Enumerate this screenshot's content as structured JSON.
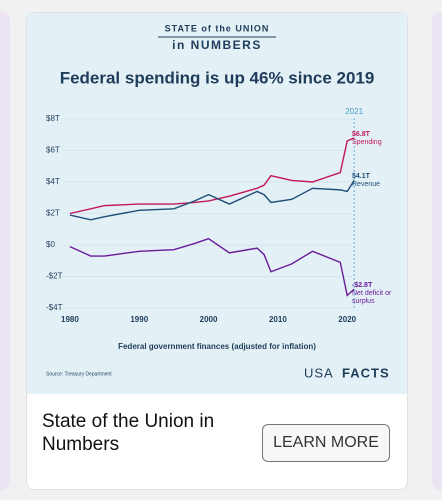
{
  "card": {
    "kicker_top": "STATE of the UNION",
    "kicker_bottom": "in NUMBERS",
    "title": "State of the Union in Numbers",
    "button": "LEARN MORE",
    "source": "Source: Treasury Department",
    "logo_a": "USA",
    "logo_b": "FACTS"
  },
  "chart_data": {
    "type": "line",
    "title": "Federal spending is up 46% since 2019",
    "x_label": "Federal government finances (adjusted for inflation)",
    "x": [
      1980,
      1983,
      1985,
      1990,
      1995,
      1998,
      2000,
      2003,
      2007,
      2008,
      2009,
      2012,
      2015,
      2019,
      2020,
      2021
    ],
    "series": [
      {
        "name": "Spending",
        "color": "#c2185b",
        "end_label": "$6.8T",
        "values": [
          2.0,
          2.3,
          2.5,
          2.6,
          2.6,
          2.7,
          2.8,
          3.1,
          3.6,
          3.8,
          4.4,
          4.1,
          4.0,
          4.6,
          6.6,
          6.8
        ]
      },
      {
        "name": "Revenue",
        "color": "#1f4e79",
        "end_label": "$4.1T",
        "values": [
          1.9,
          1.6,
          1.8,
          2.2,
          2.3,
          2.8,
          3.2,
          2.6,
          3.4,
          3.2,
          2.7,
          2.9,
          3.6,
          3.5,
          3.4,
          4.1
        ]
      },
      {
        "name": "Net deficit or surplus",
        "color": "#6a1b9a",
        "end_label": "-$2.8T",
        "values": [
          -0.1,
          -0.7,
          -0.7,
          -0.4,
          -0.3,
          0.1,
          0.4,
          -0.5,
          -0.2,
          -0.6,
          -1.7,
          -1.2,
          -0.4,
          -1.1,
          -3.2,
          -2.8
        ]
      }
    ],
    "marker": 2021,
    "xlim": [
      1979,
      2023
    ],
    "xticks": [
      1980,
      1990,
      2000,
      2010,
      2020
    ],
    "ylim": [
      -4,
      8
    ],
    "yticks": [
      {
        "value": 8,
        "label": "$8T"
      },
      {
        "value": 6,
        "label": "$6T"
      },
      {
        "value": 4,
        "label": "$4T"
      },
      {
        "value": 2,
        "label": "$2T"
      },
      {
        "value": 0,
        "label": "$0"
      },
      {
        "value": -2,
        "label": "-$2T"
      },
      {
        "value": -4,
        "label": "-$4T"
      }
    ],
    "grid": true
  }
}
